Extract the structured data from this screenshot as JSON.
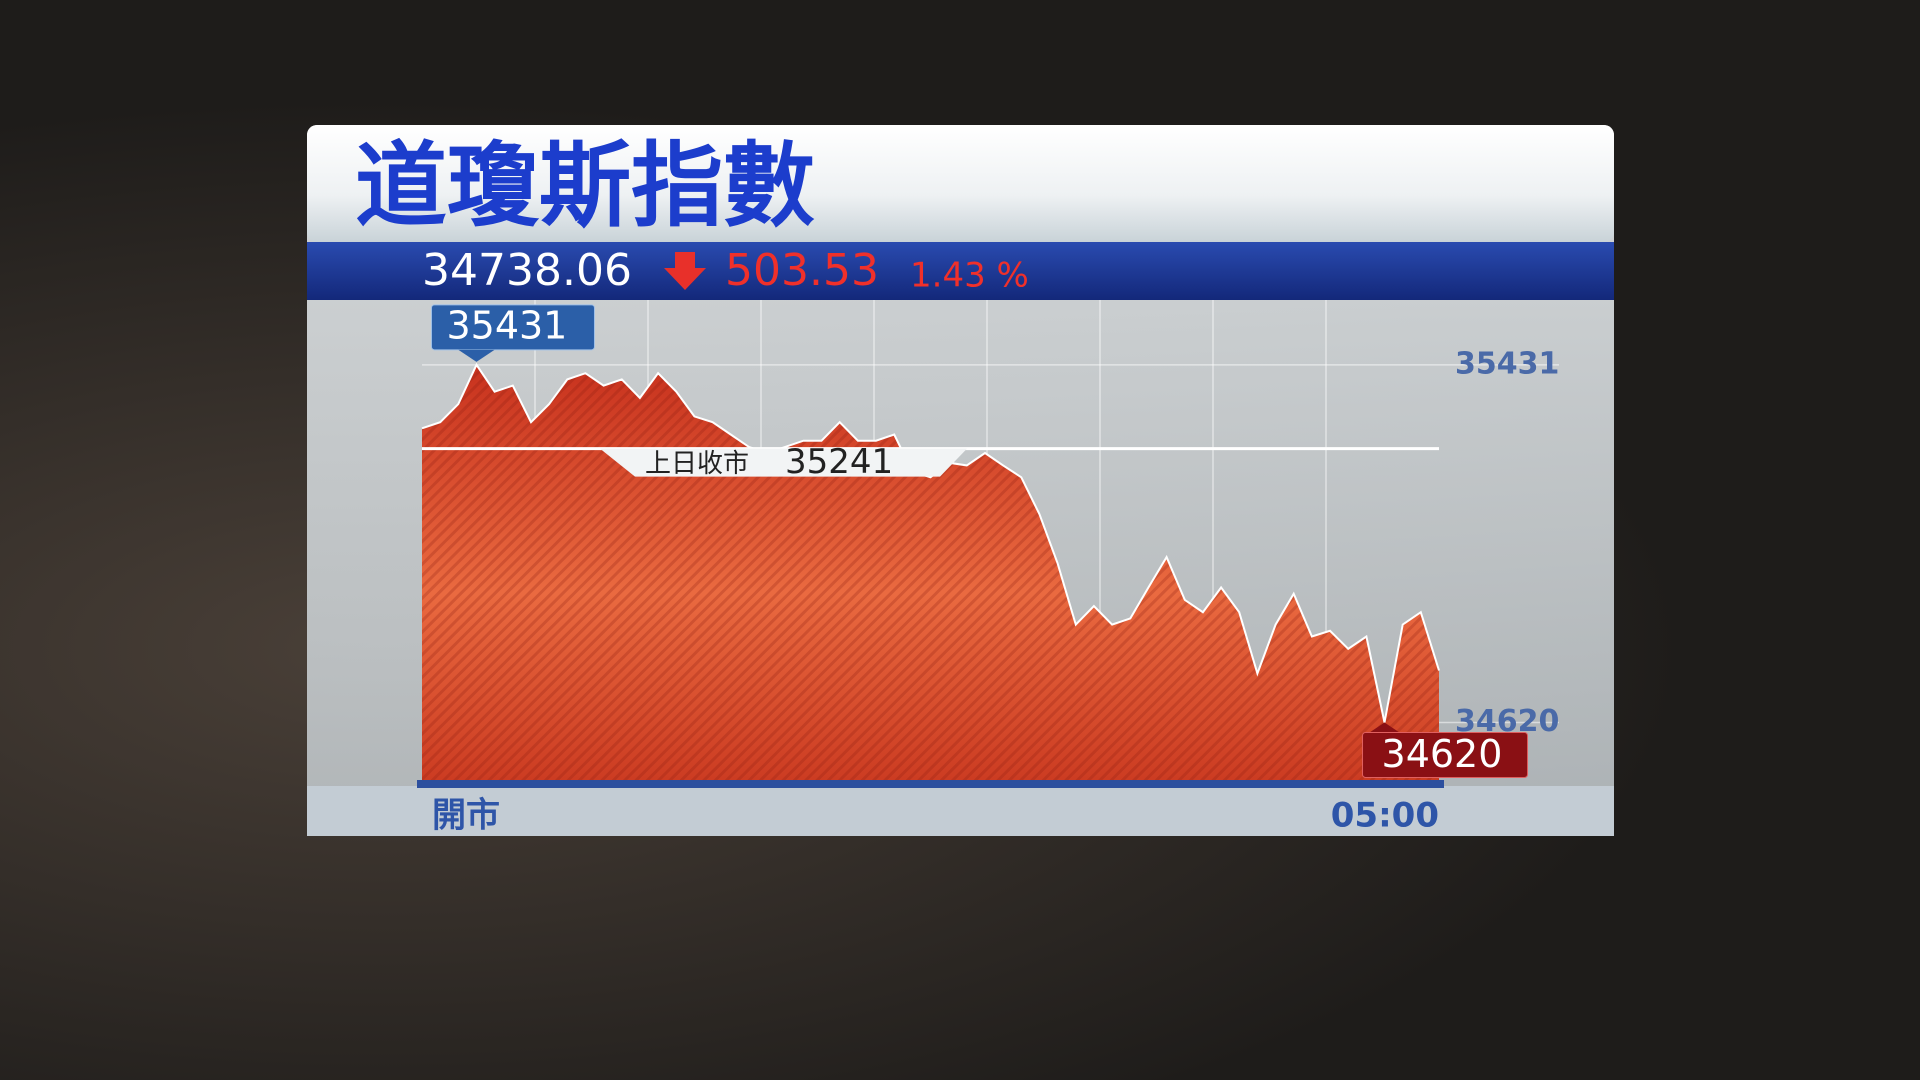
{
  "chart_data": {
    "type": "area",
    "title": "道瓊斯指數",
    "last": 34738.06,
    "change": 503.53,
    "change_percent": "1.43 %",
    "values": [
      35287,
      35301,
      35342,
      35431,
      35370,
      35384,
      35301,
      35342,
      35398,
      35412,
      35384,
      35398,
      35356,
      35412,
      35370,
      35314,
      35301,
      35273,
      35245,
      35231,
      35245,
      35259,
      35259,
      35301,
      35259,
      35259,
      35273,
      35189,
      35176,
      35209,
      35203,
      35231,
      35203,
      35176,
      35092,
      34981,
      34842,
      34884,
      34842,
      34856,
      34926,
      34995,
      34898,
      34870,
      34926,
      34870,
      34731,
      34842,
      34912,
      34815,
      34828,
      34787,
      34815,
      34620,
      34842,
      34870,
      34738
    ],
    "color": "#d84a2a",
    "reference": {
      "label": "上日收市",
      "value": 35241
    },
    "ylim": [
      34476,
      35578
    ],
    "yticks": [
      34620,
      35431
    ],
    "xlim": [
      0,
      56
    ],
    "xticks": [
      {
        "value": 0,
        "label": "開市"
      },
      {
        "value": 56,
        "label": "05:00"
      }
    ],
    "grid": true
  }
}
